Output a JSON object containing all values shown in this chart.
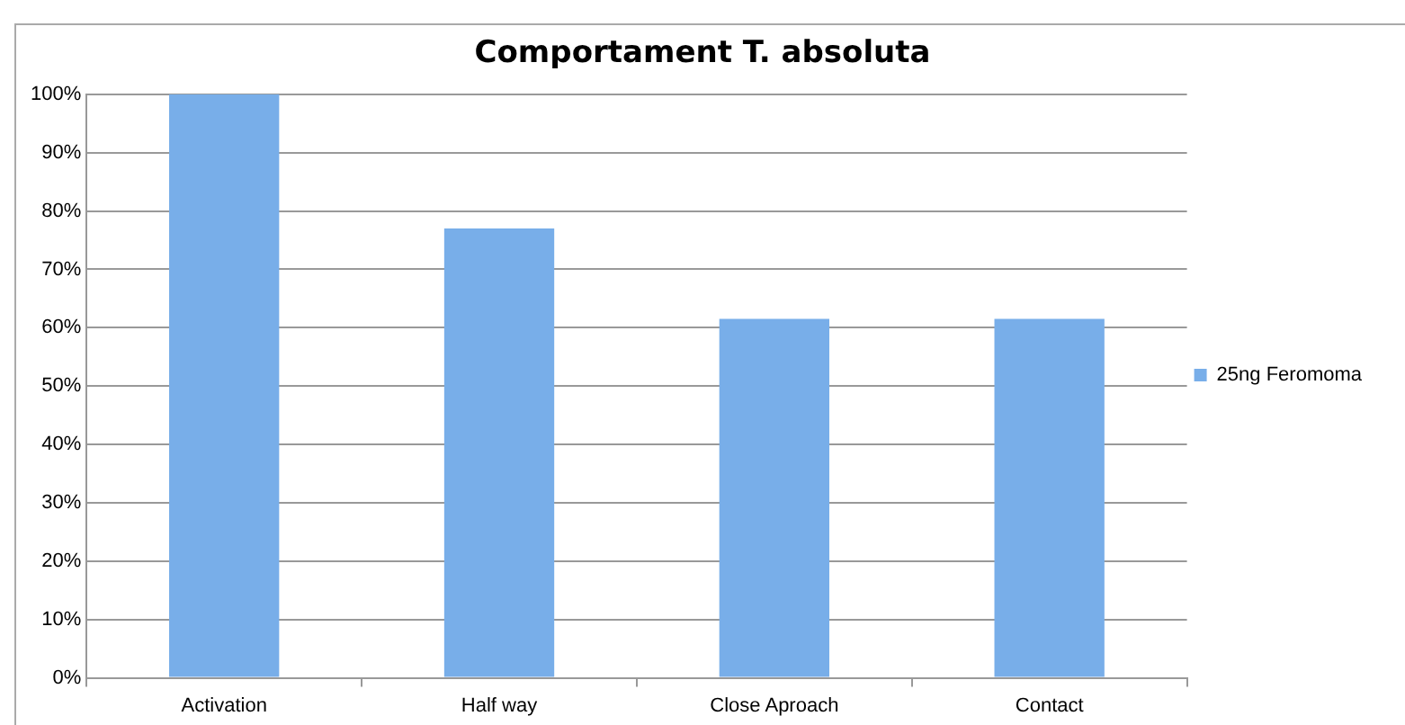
{
  "chart_data": {
    "type": "bar",
    "title": "Comportament T. absoluta",
    "categories": [
      "Activation",
      "Half way",
      "Close Aproach",
      "Contact"
    ],
    "series": [
      {
        "name": "25ng Feromoma",
        "color": "#78aee9",
        "values": [
          100,
          77,
          61.5,
          61.5
        ]
      }
    ],
    "ylim": [
      0,
      100
    ],
    "yticks": [
      {
        "value": 0,
        "label": "0%"
      },
      {
        "value": 10,
        "label": "10%"
      },
      {
        "value": 20,
        "label": "20%"
      },
      {
        "value": 30,
        "label": "30%"
      },
      {
        "value": 40,
        "label": "40%"
      },
      {
        "value": 50,
        "label": "50%"
      },
      {
        "value": 60,
        "label": "60%"
      },
      {
        "value": 70,
        "label": "70%"
      },
      {
        "value": 80,
        "label": "80%"
      },
      {
        "value": 90,
        "label": "90%"
      },
      {
        "value": 100,
        "label": "100%"
      }
    ],
    "grid": "y",
    "legend": "right"
  }
}
